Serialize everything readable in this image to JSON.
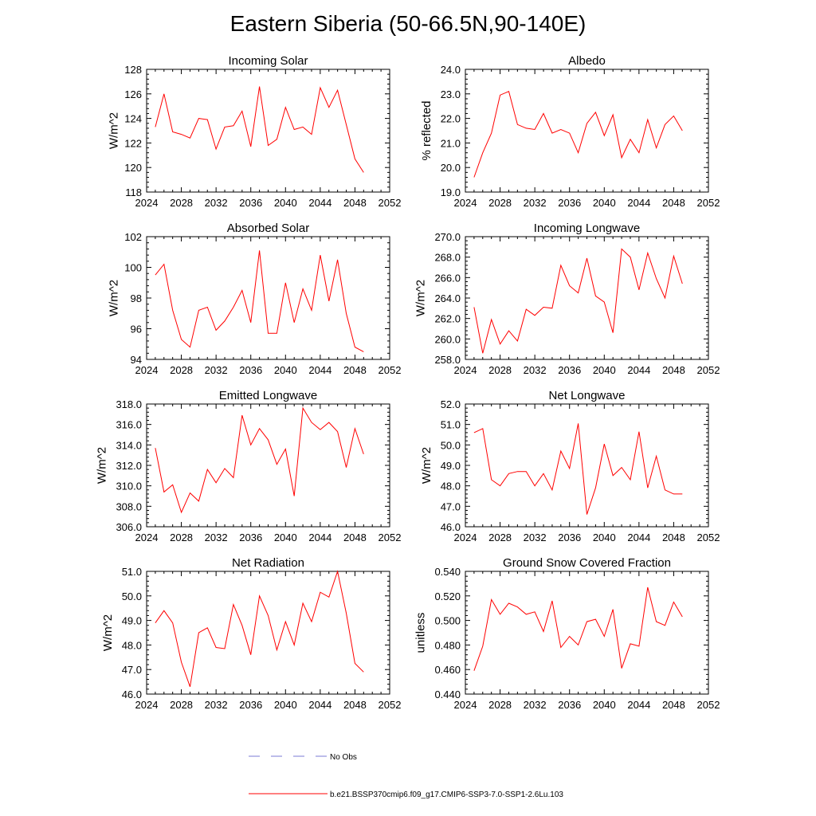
{
  "title": "Eastern Siberia (50-66.5N,90-140E)",
  "legend": {
    "obs_label": "No Obs",
    "obs_color": "#7b7bd6",
    "model_label": "b.e21.BSSP370cmip6.f09_g17.CMIP6-SSP3-7.0-SSP1-2.6Lu.103",
    "model_color": "#ff0000"
  },
  "chart_data": [
    {
      "type": "line",
      "title": "Incoming Solar",
      "ylabel": "W/m^2",
      "xlim": [
        2024,
        2052
      ],
      "xticks": [
        2024,
        2028,
        2032,
        2036,
        2040,
        2044,
        2048,
        2052
      ],
      "ylim": [
        118,
        128
      ],
      "yticks": [
        "118",
        "120",
        "122",
        "124",
        "126",
        "128"
      ],
      "x": [
        2025,
        2026,
        2027,
        2028,
        2029,
        2030,
        2031,
        2032,
        2033,
        2034,
        2035,
        2036,
        2037,
        2038,
        2039,
        2040,
        2041,
        2042,
        2043,
        2044,
        2045,
        2046,
        2047,
        2048,
        2049
      ],
      "values": [
        123.3,
        126.0,
        122.9,
        122.7,
        122.4,
        124.0,
        123.9,
        121.5,
        123.3,
        123.4,
        124.6,
        121.7,
        126.6,
        121.8,
        122.3,
        124.9,
        123.1,
        123.3,
        122.7,
        126.5,
        124.9,
        126.3,
        123.5,
        120.7,
        119.6
      ]
    },
    {
      "type": "line",
      "title": "Albedo",
      "ylabel": "% reflected",
      "xlim": [
        2024,
        2052
      ],
      "xticks": [
        2024,
        2028,
        2032,
        2036,
        2040,
        2044,
        2048,
        2052
      ],
      "ylim": [
        19,
        24
      ],
      "yticks": [
        "19.0",
        "20.0",
        "21.0",
        "22.0",
        "23.0",
        "24.0"
      ],
      "x": [
        2025,
        2026,
        2027,
        2028,
        2029,
        2030,
        2031,
        2032,
        2033,
        2034,
        2035,
        2036,
        2037,
        2038,
        2039,
        2040,
        2041,
        2042,
        2043,
        2044,
        2045,
        2046,
        2047,
        2048,
        2049
      ],
      "values": [
        19.6,
        20.6,
        21.4,
        22.95,
        23.1,
        21.75,
        21.6,
        21.55,
        22.2,
        21.4,
        21.55,
        21.4,
        20.6,
        21.8,
        22.25,
        21.3,
        22.15,
        20.4,
        21.15,
        20.6,
        21.95,
        20.8,
        21.75,
        22.1,
        21.5
      ]
    },
    {
      "type": "line",
      "title": "Absorbed Solar",
      "ylabel": "W/m^2",
      "xlim": [
        2024,
        2052
      ],
      "xticks": [
        2024,
        2028,
        2032,
        2036,
        2040,
        2044,
        2048,
        2052
      ],
      "ylim": [
        94,
        102
      ],
      "yticks": [
        "94",
        "96",
        "98",
        "100",
        "102"
      ],
      "x": [
        2025,
        2026,
        2027,
        2028,
        2029,
        2030,
        2031,
        2032,
        2033,
        2034,
        2035,
        2036,
        2037,
        2038,
        2039,
        2040,
        2041,
        2042,
        2043,
        2044,
        2045,
        2046,
        2047,
        2048,
        2049
      ],
      "values": [
        99.5,
        100.2,
        97.2,
        95.3,
        94.8,
        97.2,
        97.4,
        95.9,
        96.5,
        97.4,
        98.5,
        96.4,
        101.1,
        95.7,
        95.7,
        99.0,
        96.4,
        98.6,
        97.2,
        100.8,
        97.8,
        100.5,
        97.0,
        94.8,
        94.5
      ]
    },
    {
      "type": "line",
      "title": "Incoming Longwave",
      "ylabel": "W/m^2",
      "xlim": [
        2024,
        2052
      ],
      "xticks": [
        2024,
        2028,
        2032,
        2036,
        2040,
        2044,
        2048,
        2052
      ],
      "ylim": [
        258,
        270
      ],
      "yticks": [
        "258.0",
        "260.0",
        "262.0",
        "264.0",
        "266.0",
        "268.0",
        "270.0"
      ],
      "x": [
        2025,
        2026,
        2027,
        2028,
        2029,
        2030,
        2031,
        2032,
        2033,
        2034,
        2035,
        2036,
        2037,
        2038,
        2039,
        2040,
        2041,
        2042,
        2043,
        2044,
        2045,
        2046,
        2047,
        2048,
        2049
      ],
      "values": [
        263.1,
        258.6,
        261.9,
        259.5,
        260.8,
        259.8,
        262.9,
        262.3,
        263.1,
        263.0,
        267.2,
        265.2,
        264.5,
        267.9,
        264.2,
        263.6,
        260.6,
        268.8,
        268.0,
        264.8,
        268.4,
        265.9,
        264.0,
        268.1,
        265.4
      ]
    },
    {
      "type": "line",
      "title": "Emitted Longwave",
      "ylabel": "W/m^2",
      "xlim": [
        2024,
        2052
      ],
      "xticks": [
        2024,
        2028,
        2032,
        2036,
        2040,
        2044,
        2048,
        2052
      ],
      "ylim": [
        306,
        318
      ],
      "yticks": [
        "306.0",
        "308.0",
        "310.0",
        "312.0",
        "314.0",
        "316.0",
        "318.0"
      ],
      "x": [
        2025,
        2026,
        2027,
        2028,
        2029,
        2030,
        2031,
        2032,
        2033,
        2034,
        2035,
        2036,
        2037,
        2038,
        2039,
        2040,
        2041,
        2042,
        2043,
        2044,
        2045,
        2046,
        2047,
        2048,
        2049
      ],
      "values": [
        313.7,
        309.4,
        310.1,
        307.4,
        309.3,
        308.5,
        311.6,
        310.3,
        311.7,
        310.8,
        316.9,
        314.0,
        315.6,
        314.5,
        312.1,
        313.6,
        309.0,
        317.6,
        316.2,
        315.5,
        316.2,
        315.3,
        311.8,
        315.6,
        313.1
      ]
    },
    {
      "type": "line",
      "title": "Net Longwave",
      "ylabel": "W/m^2",
      "xlim": [
        2024,
        2052
      ],
      "xticks": [
        2024,
        2028,
        2032,
        2036,
        2040,
        2044,
        2048,
        2052
      ],
      "ylim": [
        46,
        52
      ],
      "yticks": [
        "46.0",
        "47.0",
        "48.0",
        "49.0",
        "50.0",
        "51.0",
        "52.0"
      ],
      "x": [
        2025,
        2026,
        2027,
        2028,
        2029,
        2030,
        2031,
        2032,
        2033,
        2034,
        2035,
        2036,
        2037,
        2038,
        2039,
        2040,
        2041,
        2042,
        2043,
        2044,
        2045,
        2046,
        2047,
        2048,
        2049
      ],
      "values": [
        50.6,
        50.8,
        48.3,
        48.0,
        48.6,
        48.7,
        48.7,
        48.0,
        48.6,
        47.8,
        49.7,
        48.85,
        51.05,
        46.6,
        47.9,
        50.05,
        48.5,
        48.9,
        48.3,
        50.65,
        47.9,
        49.45,
        47.8,
        47.6,
        47.6
      ]
    },
    {
      "type": "line",
      "title": "Net Radiation",
      "ylabel": "W/m^2",
      "xlim": [
        2024,
        2052
      ],
      "xticks": [
        2024,
        2028,
        2032,
        2036,
        2040,
        2044,
        2048,
        2052
      ],
      "ylim": [
        46,
        51
      ],
      "yticks": [
        "46.0",
        "47.0",
        "48.0",
        "49.0",
        "50.0",
        "51.0"
      ],
      "x": [
        2025,
        2026,
        2027,
        2028,
        2029,
        2030,
        2031,
        2032,
        2033,
        2034,
        2035,
        2036,
        2037,
        2038,
        2039,
        2040,
        2041,
        2042,
        2043,
        2044,
        2045,
        2046,
        2047,
        2048,
        2049
      ],
      "values": [
        48.9,
        49.4,
        48.9,
        47.3,
        46.3,
        48.5,
        48.7,
        47.9,
        47.85,
        49.65,
        48.8,
        47.6,
        50.0,
        49.2,
        47.8,
        48.95,
        48.0,
        49.7,
        48.95,
        50.15,
        49.95,
        51.0,
        49.3,
        47.25,
        46.9
      ]
    },
    {
      "type": "line",
      "title": "Ground Snow Covered Fraction",
      "ylabel": "unitless",
      "xlim": [
        2024,
        2052
      ],
      "xticks": [
        2024,
        2028,
        2032,
        2036,
        2040,
        2044,
        2048,
        2052
      ],
      "ylim": [
        0.44,
        0.54
      ],
      "yticks": [
        "0.440",
        "0.460",
        "0.480",
        "0.500",
        "0.520",
        "0.540"
      ],
      "x": [
        2025,
        2026,
        2027,
        2028,
        2029,
        2030,
        2031,
        2032,
        2033,
        2034,
        2035,
        2036,
        2037,
        2038,
        2039,
        2040,
        2041,
        2042,
        2043,
        2044,
        2045,
        2046,
        2047,
        2048,
        2049
      ],
      "values": [
        0.459,
        0.479,
        0.517,
        0.505,
        0.514,
        0.511,
        0.505,
        0.507,
        0.491,
        0.516,
        0.478,
        0.487,
        0.48,
        0.499,
        0.501,
        0.487,
        0.509,
        0.461,
        0.481,
        0.479,
        0.527,
        0.499,
        0.496,
        0.515,
        0.503
      ]
    }
  ]
}
